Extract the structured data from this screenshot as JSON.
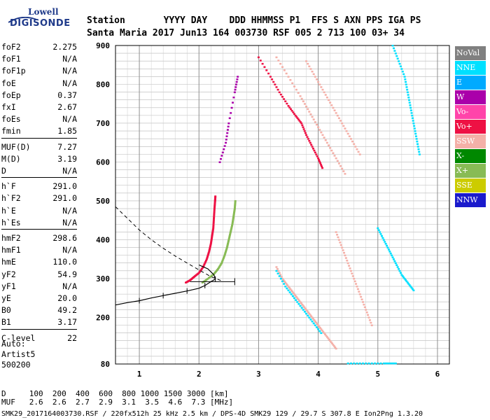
{
  "logo": {
    "line1": "Lowell",
    "line2": "DIGISONDE"
  },
  "header": {
    "line1": "Station       YYYY DAY    DDD HHMMSS P1  FFS S AXN PPS IGA PS",
    "line2": "Santa Maria 2017 Jun13 164 003730 RSF 005 2 713 100 03+ 34"
  },
  "params": [
    {
      "label": "foF2",
      "value": "2.275"
    },
    {
      "label": "foF1",
      "value": "N/A"
    },
    {
      "label": "foF1p",
      "value": "N/A"
    },
    {
      "label": "foE",
      "value": "N/A"
    },
    {
      "label": "foEp",
      "value": "0.37"
    },
    {
      "label": "fxI",
      "value": "2.67"
    },
    {
      "label": "foEs",
      "value": "N/A"
    },
    {
      "label": "fmin",
      "value": "1.85"
    },
    {
      "label": "MUF(D)",
      "value": "7.27"
    },
    {
      "label": "M(D)",
      "value": "3.19"
    },
    {
      "label": "D",
      "value": "N/A"
    },
    {
      "label": "h`F",
      "value": "291.0"
    },
    {
      "label": "h`F2",
      "value": "291.0"
    },
    {
      "label": "h`E",
      "value": "N/A"
    },
    {
      "label": "h`Es",
      "value": "N/A"
    },
    {
      "label": "hmF2",
      "value": "298.6"
    },
    {
      "label": "hmF1",
      "value": "N/A"
    },
    {
      "label": "hmE",
      "value": "110.0"
    },
    {
      "label": "yF2",
      "value": "54.9"
    },
    {
      "label": "yF1",
      "value": "N/A"
    },
    {
      "label": "yE",
      "value": "20.0"
    },
    {
      "label": "B0",
      "value": "49.2"
    },
    {
      "label": "B1",
      "value": "3.17"
    },
    {
      "label": "C-level",
      "value": "22"
    }
  ],
  "auto": [
    "Auto:",
    "Artist5",
    "500200"
  ],
  "legend": [
    {
      "label": "NoVal",
      "color": "#808080"
    },
    {
      "label": "NNE",
      "color": "#00e0ff"
    },
    {
      "label": "E",
      "color": "#00aaff"
    },
    {
      "label": "W",
      "color": "#aa00aa"
    },
    {
      "label": "Vo-",
      "color": "#ff44aa"
    },
    {
      "label": "Vo+",
      "color": "#ee1144"
    },
    {
      "label": "SSW",
      "color": "#f4b0a8"
    },
    {
      "label": "X-",
      "color": "#008800"
    },
    {
      "label": "X+",
      "color": "#88bb55"
    },
    {
      "label": "SSE",
      "color": "#cccc00"
    },
    {
      "label": "NNW",
      "color": "#1a1acc"
    }
  ],
  "footer": {
    "line1": "D     100  200  400  600  800 1000 1500 3000 [km]",
    "line2": "MUF   2.6  2.6  2.7  2.9  3.1  3.5  4.6  7.3 [MHz]",
    "line3": "SMK29_2017164003730.RSF / 220fx512h 25 kHz 2.5 km / DPS-4D SMK29 129 / 29.7 S 307.8 E Ion2Png 1.3.20"
  },
  "chart_data": {
    "type": "scatter",
    "xlim": [
      0.6,
      6.2
    ],
    "ylim": [
      80,
      900
    ],
    "x_ticks": [
      1,
      2,
      3,
      4,
      5,
      6
    ],
    "y_ticks": [
      80,
      200,
      300,
      400,
      500,
      600,
      700,
      800,
      900
    ],
    "grid": true,
    "legend_placement": "right",
    "traces": [
      {
        "name": "Vo+",
        "color": "#ee1144",
        "points": [
          [
            1.78,
            290
          ],
          [
            1.85,
            296
          ],
          [
            1.92,
            305
          ],
          [
            2.0,
            315
          ],
          [
            2.07,
            330
          ],
          [
            2.13,
            350
          ],
          [
            2.17,
            370
          ],
          [
            2.2,
            390
          ],
          [
            2.22,
            410
          ],
          [
            2.24,
            430
          ],
          [
            2.25,
            455
          ],
          [
            2.26,
            480
          ],
          [
            2.27,
            500
          ],
          [
            2.275,
            512
          ]
        ]
      },
      {
        "name": "X+",
        "color": "#88bb55",
        "points": [
          [
            2.06,
            290
          ],
          [
            2.15,
            300
          ],
          [
            2.25,
            312
          ],
          [
            2.32,
            325
          ],
          [
            2.38,
            340
          ],
          [
            2.43,
            360
          ],
          [
            2.47,
            380
          ],
          [
            2.5,
            400
          ],
          [
            2.53,
            420
          ],
          [
            2.56,
            440
          ],
          [
            2.58,
            460
          ],
          [
            2.6,
            480
          ],
          [
            2.61,
            500
          ]
        ]
      },
      {
        "name": "Vo+",
        "color": "#ee1144",
        "points": [
          [
            3.0,
            870
          ],
          [
            3.2,
            820
          ],
          [
            3.35,
            780
          ],
          [
            3.5,
            745
          ],
          [
            3.62,
            720
          ],
          [
            3.72,
            700
          ],
          [
            3.8,
            670
          ],
          [
            3.9,
            640
          ],
          [
            4.0,
            610
          ],
          [
            4.07,
            585
          ]
        ]
      },
      {
        "name": "SSW",
        "color": "#f4b0a8",
        "points": [
          [
            3.3,
            870
          ],
          [
            3.5,
            820
          ],
          [
            3.7,
            770
          ],
          [
            3.85,
            730
          ],
          [
            4.0,
            690
          ],
          [
            4.15,
            650
          ],
          [
            4.3,
            610
          ],
          [
            4.45,
            570
          ]
        ]
      },
      {
        "name": "NNE",
        "color": "#00e0ff",
        "points": [
          [
            5.25,
            900
          ],
          [
            5.35,
            860
          ],
          [
            5.45,
            820
          ],
          [
            5.5,
            780
          ],
          [
            5.55,
            740
          ],
          [
            5.6,
            700
          ],
          [
            5.65,
            660
          ],
          [
            5.7,
            620
          ]
        ]
      },
      {
        "name": "SSW",
        "color": "#f4b0a8",
        "points": [
          [
            3.3,
            330
          ],
          [
            3.4,
            300
          ],
          [
            3.5,
            280
          ],
          [
            3.6,
            260
          ],
          [
            3.7,
            240
          ],
          [
            3.8,
            220
          ],
          [
            3.9,
            200
          ],
          [
            4.0,
            180
          ],
          [
            4.1,
            160
          ],
          [
            4.2,
            140
          ],
          [
            4.3,
            120
          ]
        ]
      },
      {
        "name": "NNE",
        "color": "#00e0ff",
        "points": [
          [
            3.3,
            320
          ],
          [
            3.45,
            280
          ],
          [
            3.6,
            250
          ],
          [
            3.75,
            220
          ],
          [
            3.9,
            190
          ],
          [
            4.05,
            160
          ]
        ]
      },
      {
        "name": "SSW",
        "color": "#f4b0a8",
        "points": [
          [
            4.3,
            420
          ],
          [
            4.4,
            380
          ],
          [
            4.5,
            340
          ],
          [
            4.6,
            300
          ],
          [
            4.7,
            260
          ],
          [
            4.8,
            220
          ],
          [
            4.9,
            180
          ]
        ]
      },
      {
        "name": "NNE",
        "color": "#00e0ff",
        "points": [
          [
            5.0,
            430
          ],
          [
            5.1,
            400
          ],
          [
            5.2,
            370
          ],
          [
            5.3,
            340
          ],
          [
            5.4,
            310
          ],
          [
            5.5,
            290
          ],
          [
            5.6,
            270
          ]
        ]
      },
      {
        "name": "SSW",
        "color": "#f4b0a8",
        "points": [
          [
            3.8,
            860
          ],
          [
            3.95,
            820
          ],
          [
            4.1,
            780
          ],
          [
            4.25,
            740
          ],
          [
            4.4,
            700
          ],
          [
            4.55,
            660
          ],
          [
            4.7,
            620
          ]
        ]
      },
      {
        "name": "W",
        "color": "#aa00aa",
        "points": [
          [
            2.35,
            600
          ],
          [
            2.45,
            650
          ],
          [
            2.5,
            700
          ],
          [
            2.6,
            780
          ],
          [
            2.65,
            820
          ]
        ]
      },
      {
        "name": "NNE",
        "color": "#00e0ff",
        "points": [
          [
            4.5,
            82
          ],
          [
            4.8,
            82
          ],
          [
            5.1,
            82
          ],
          [
            5.3,
            82
          ]
        ]
      }
    ],
    "true_height_profile": {
      "solid": [
        [
          0.6,
          232
        ],
        [
          0.8,
          238
        ],
        [
          1.0,
          243
        ],
        [
          1.2,
          250
        ],
        [
          1.4,
          256
        ],
        [
          1.6,
          262
        ],
        [
          1.8,
          268
        ],
        [
          2.0,
          275
        ],
        [
          2.1,
          282
        ],
        [
          2.2,
          292
        ],
        [
          2.275,
          298.6
        ]
      ],
      "dashed": [
        [
          0.6,
          485
        ],
        [
          0.8,
          455
        ],
        [
          1.0,
          425
        ],
        [
          1.2,
          400
        ],
        [
          1.4,
          378
        ],
        [
          1.6,
          358
        ],
        [
          1.8,
          340
        ],
        [
          2.0,
          322
        ],
        [
          2.2,
          305
        ],
        [
          2.4,
          293
        ]
      ],
      "upper_arc": [
        [
          2.275,
          298.6
        ],
        [
          2.25,
          310
        ],
        [
          2.15,
          325
        ],
        [
          2.0,
          335
        ]
      ],
      "upper_limit_bar": {
        "x0": 1.85,
        "x1": 2.6,
        "y": 292
      }
    }
  }
}
